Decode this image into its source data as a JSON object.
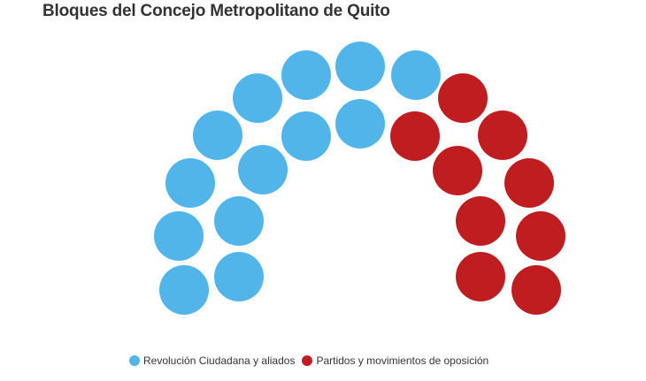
{
  "chart_data": {
    "type": "parliament",
    "title": "Bloques del Concejo Metropolitano de Quito",
    "series": [
      {
        "name": "Revolución Ciudadana y aliados",
        "values": [
          13
        ],
        "color": "#52b5ea"
      },
      {
        "name": "Partidos y movimientos de oposición",
        "values": [
          8
        ],
        "color": "#c01d21"
      }
    ],
    "total_seats": 21,
    "legend_position": "bottom"
  }
}
